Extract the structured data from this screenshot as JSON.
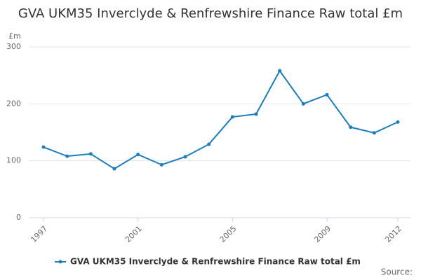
{
  "chart_data": {
    "type": "line",
    "title": "GVA UKM35 Inverclyde & Renfrewshire Finance Raw total £m",
    "y_label": "£m",
    "x": [
      1997,
      1998,
      1999,
      2000,
      2001,
      2002,
      2003,
      2004,
      2005,
      2006,
      2007,
      2008,
      2009,
      2010,
      2011,
      2012
    ],
    "series": [
      {
        "name": "GVA UKM35 Inverclyde & Renfrewshire Finance Raw total £m",
        "color": "#1a7dc0",
        "values": [
          124,
          108,
          112,
          86,
          111,
          93,
          107,
          129,
          177,
          182,
          258,
          200,
          216,
          159,
          149,
          168
        ]
      }
    ],
    "xlim": [
      1997,
      2012
    ],
    "xticks": [
      1997,
      2001,
      2005,
      2009,
      2012
    ],
    "ylim": [
      0,
      300
    ],
    "yticks": [
      0,
      100,
      200,
      300
    ],
    "grid": true,
    "source": "Source:"
  }
}
